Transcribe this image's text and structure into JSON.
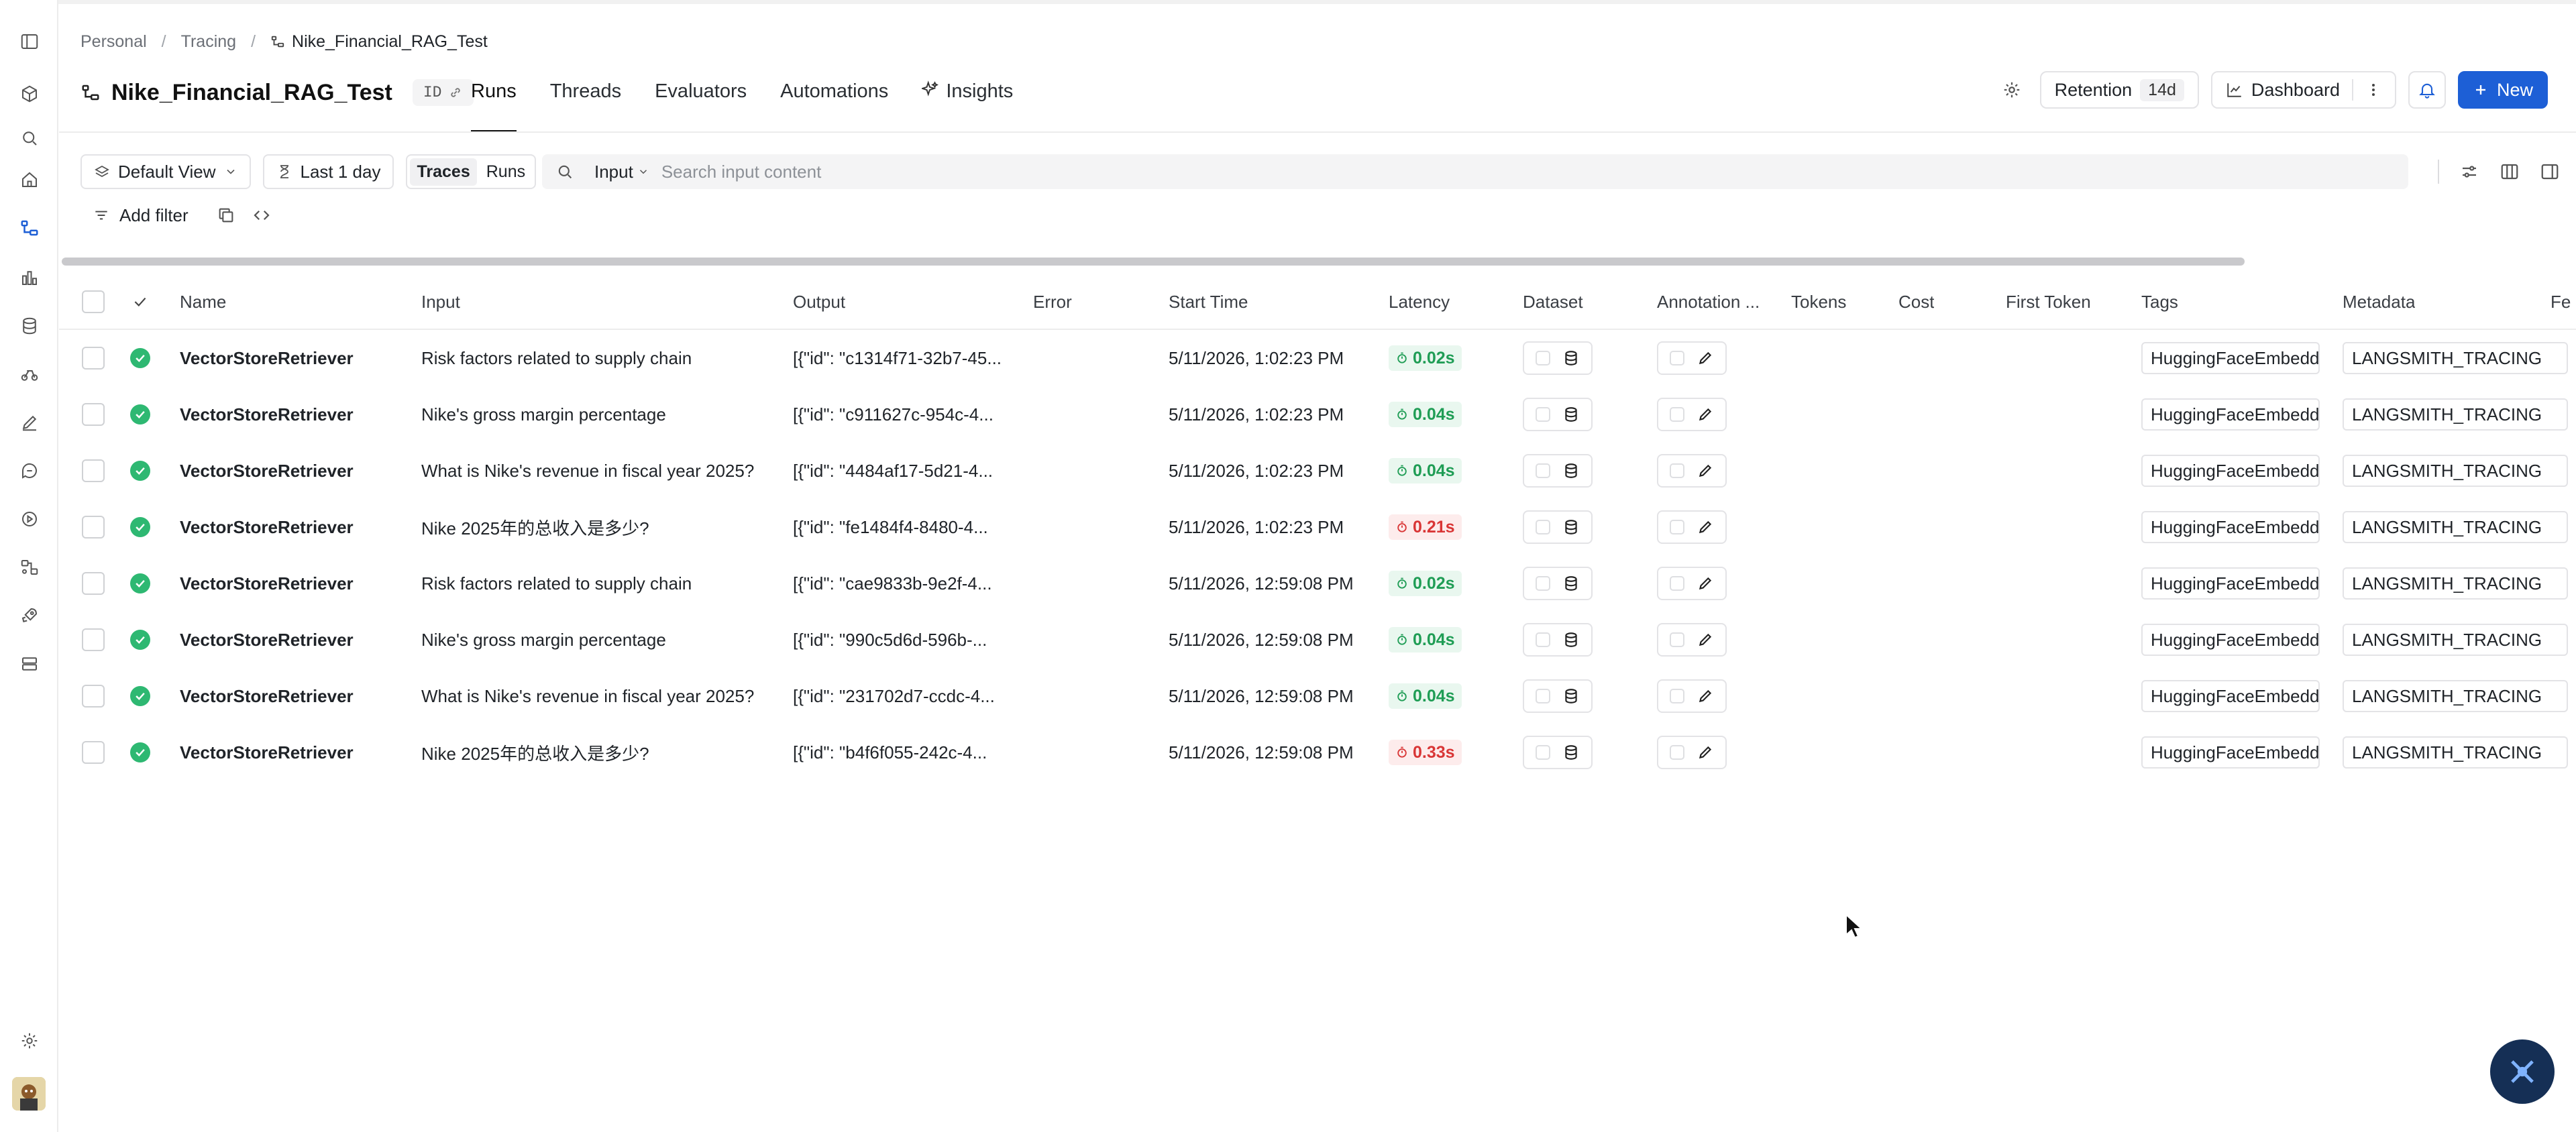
{
  "breadcrumb": {
    "items": [
      "Personal",
      "Tracing"
    ],
    "current": "Nike_Financial_RAG_Test",
    "separator": "/"
  },
  "project": {
    "name": "Nike_Financial_RAG_Test",
    "id_label": "ID"
  },
  "tabs": [
    {
      "label": "Runs",
      "active": true
    },
    {
      "label": "Threads",
      "active": false
    },
    {
      "label": "Evaluators",
      "active": false
    },
    {
      "label": "Automations",
      "active": false
    },
    {
      "label": "Insights",
      "active": false
    }
  ],
  "header_actions": {
    "retention_label": "Retention",
    "retention_value": "14d",
    "dashboard_label": "Dashboard",
    "new_label": "New"
  },
  "toolbar": {
    "view_label": "Default View",
    "time_label": "Last 1 day",
    "traces_label": "Traces",
    "runs_label": "Runs",
    "search_field": "Input",
    "search_placeholder": "Search input content",
    "add_filter_label": "Add filter"
  },
  "columns": [
    "Name",
    "Input",
    "Output",
    "Error",
    "Start Time",
    "Latency",
    "Dataset",
    "Annotation ...",
    "Tokens",
    "Cost",
    "First Token",
    "Tags",
    "Metadata",
    "Fe"
  ],
  "rows": [
    {
      "name": "VectorStoreRetriever",
      "input": "Risk factors related to supply chain",
      "output": "[{\"id\": \"c1314f71-32b7-45...",
      "start": "5/11/2026, 1:02:23 PM",
      "latency": "0.02s",
      "latency_status": "good",
      "tag": "HuggingFaceEmbeddi",
      "metadata": "LANGSMITH_TRACING"
    },
    {
      "name": "VectorStoreRetriever",
      "input": "Nike's gross margin percentage",
      "output": "[{\"id\": \"c911627c-954c-4...",
      "start": "5/11/2026, 1:02:23 PM",
      "latency": "0.04s",
      "latency_status": "good",
      "tag": "HuggingFaceEmbeddi",
      "metadata": "LANGSMITH_TRACING"
    },
    {
      "name": "VectorStoreRetriever",
      "input": "What is Nike's revenue in fiscal year 2025?",
      "output": "[{\"id\": \"4484af17-5d21-4...",
      "start": "5/11/2026, 1:02:23 PM",
      "latency": "0.04s",
      "latency_status": "good",
      "tag": "HuggingFaceEmbeddi",
      "metadata": "LANGSMITH_TRACING"
    },
    {
      "name": "VectorStoreRetriever",
      "input": "Nike 2025年的总收入是多少?",
      "output": "[{\"id\": \"fe1484f4-8480-4...",
      "start": "5/11/2026, 1:02:23 PM",
      "latency": "0.21s",
      "latency_status": "bad",
      "tag": "HuggingFaceEmbeddi",
      "metadata": "LANGSMITH_TRACING"
    },
    {
      "name": "VectorStoreRetriever",
      "input": "Risk factors related to supply chain",
      "output": "[{\"id\": \"cae9833b-9e2f-4...",
      "start": "5/11/2026, 12:59:08 PM",
      "latency": "0.02s",
      "latency_status": "good",
      "tag": "HuggingFaceEmbeddi",
      "metadata": "LANGSMITH_TRACING"
    },
    {
      "name": "VectorStoreRetriever",
      "input": "Nike's gross margin percentage",
      "output": "[{\"id\": \"990c5d6d-596b-...",
      "start": "5/11/2026, 12:59:08 PM",
      "latency": "0.04s",
      "latency_status": "good",
      "tag": "HuggingFaceEmbeddi",
      "metadata": "LANGSMITH_TRACING"
    },
    {
      "name": "VectorStoreRetriever",
      "input": "What is Nike's revenue in fiscal year 2025?",
      "output": "[{\"id\": \"231702d7-ccdc-4...",
      "start": "5/11/2026, 12:59:08 PM",
      "latency": "0.04s",
      "latency_status": "good",
      "tag": "HuggingFaceEmbeddi",
      "metadata": "LANGSMITH_TRACING"
    },
    {
      "name": "VectorStoreRetriever",
      "input": "Nike 2025年的总收入是多少?",
      "output": "[{\"id\": \"b4f6f055-242c-4...",
      "start": "5/11/2026, 12:59:08 PM",
      "latency": "0.33s",
      "latency_status": "bad",
      "tag": "HuggingFaceEmbeddi",
      "metadata": "LANGSMITH_TRACING"
    }
  ],
  "sidebar_icons": [
    "panel-toggle-icon",
    "deployments-icon",
    "search-icon",
    "home-icon",
    "tracing-icon",
    "dashboards-icon",
    "datasets-icon",
    "experiments-icon",
    "prompts-icon",
    "annotation-queues-icon",
    "playground-icon",
    "integrations-icon",
    "deploy-icon",
    "data-icon",
    "settings-icon"
  ],
  "colors": {
    "accent": "#1d5fd6",
    "success": "#2eb872",
    "latency_good": "#1f9d55",
    "latency_bad": "#d93636"
  }
}
